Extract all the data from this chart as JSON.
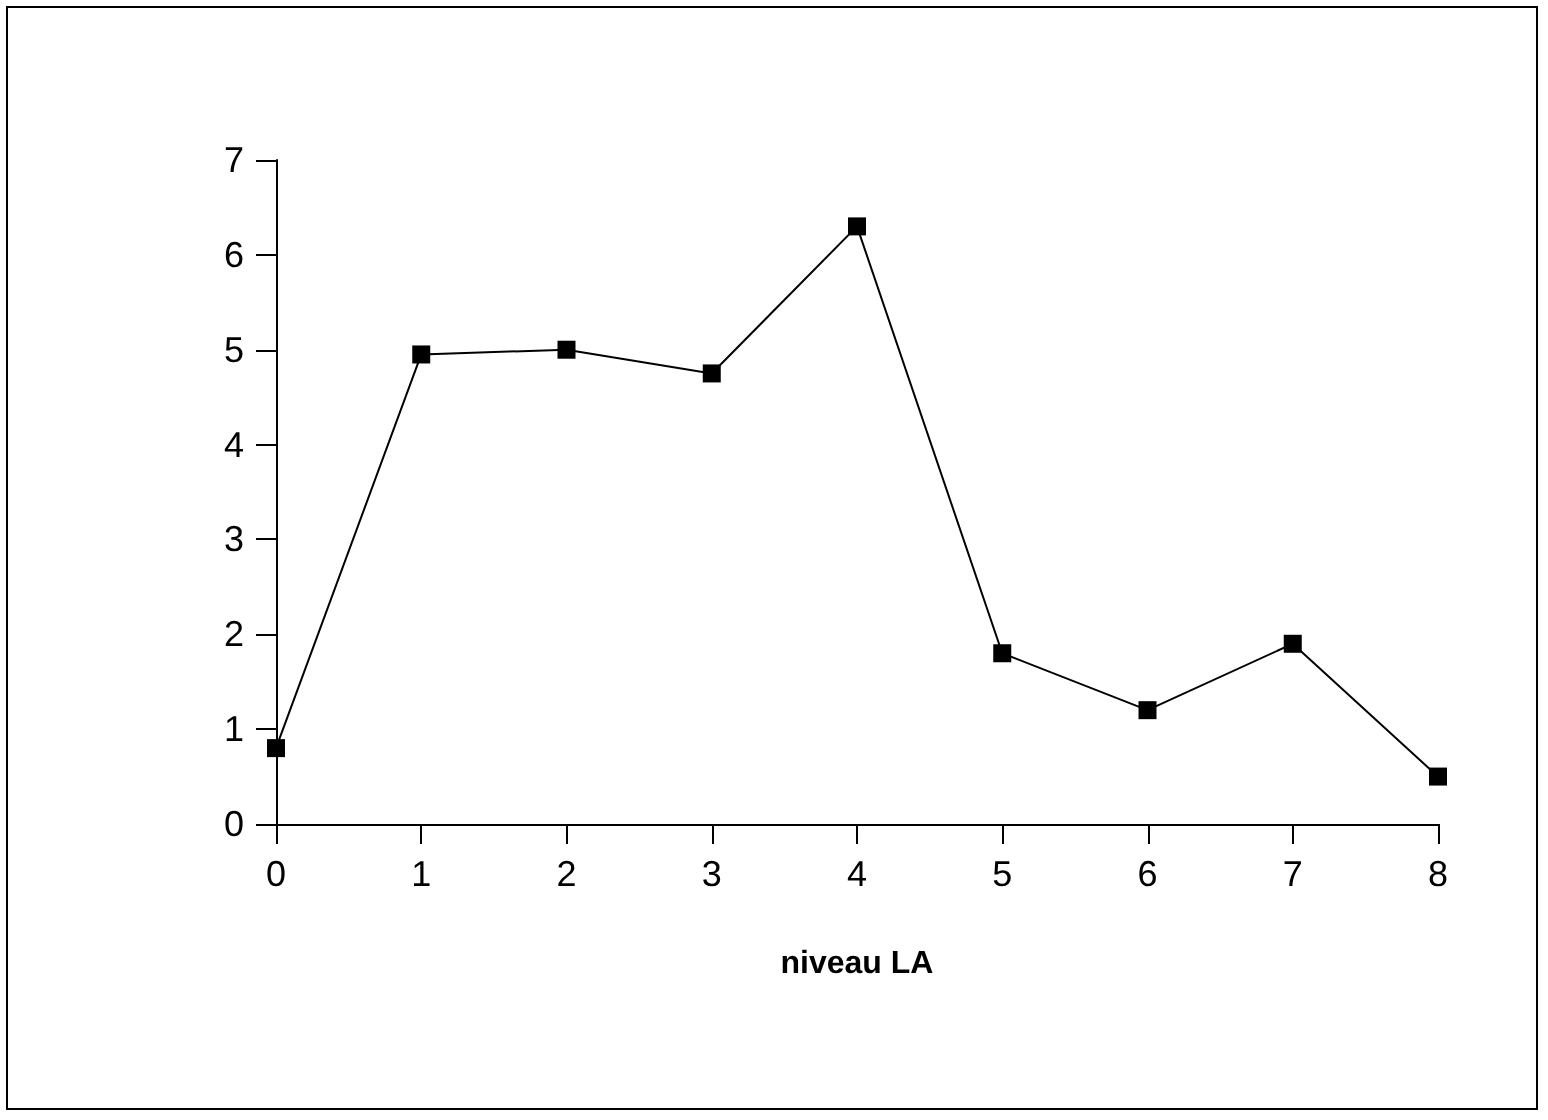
{
  "chart_data": {
    "type": "line",
    "xlabel": "niveau LA",
    "x": [
      0,
      1,
      2,
      3,
      4,
      5,
      6,
      7,
      8
    ],
    "series": [
      {
        "color": "#000000",
        "values": [
          0.8,
          4.95,
          5.0,
          4.75,
          6.3,
          1.8,
          1.2,
          1.9,
          0.5
        ]
      }
    ],
    "xlim": [
      0,
      8
    ],
    "xticks": [
      0,
      1,
      2,
      3,
      4,
      5,
      6,
      7,
      8
    ],
    "ylim": [
      0,
      7
    ],
    "yticks": [
      0,
      1,
      2,
      3,
      4,
      5,
      6,
      7
    ],
    "grid": false,
    "marker": "square",
    "line_style": "solid"
  }
}
